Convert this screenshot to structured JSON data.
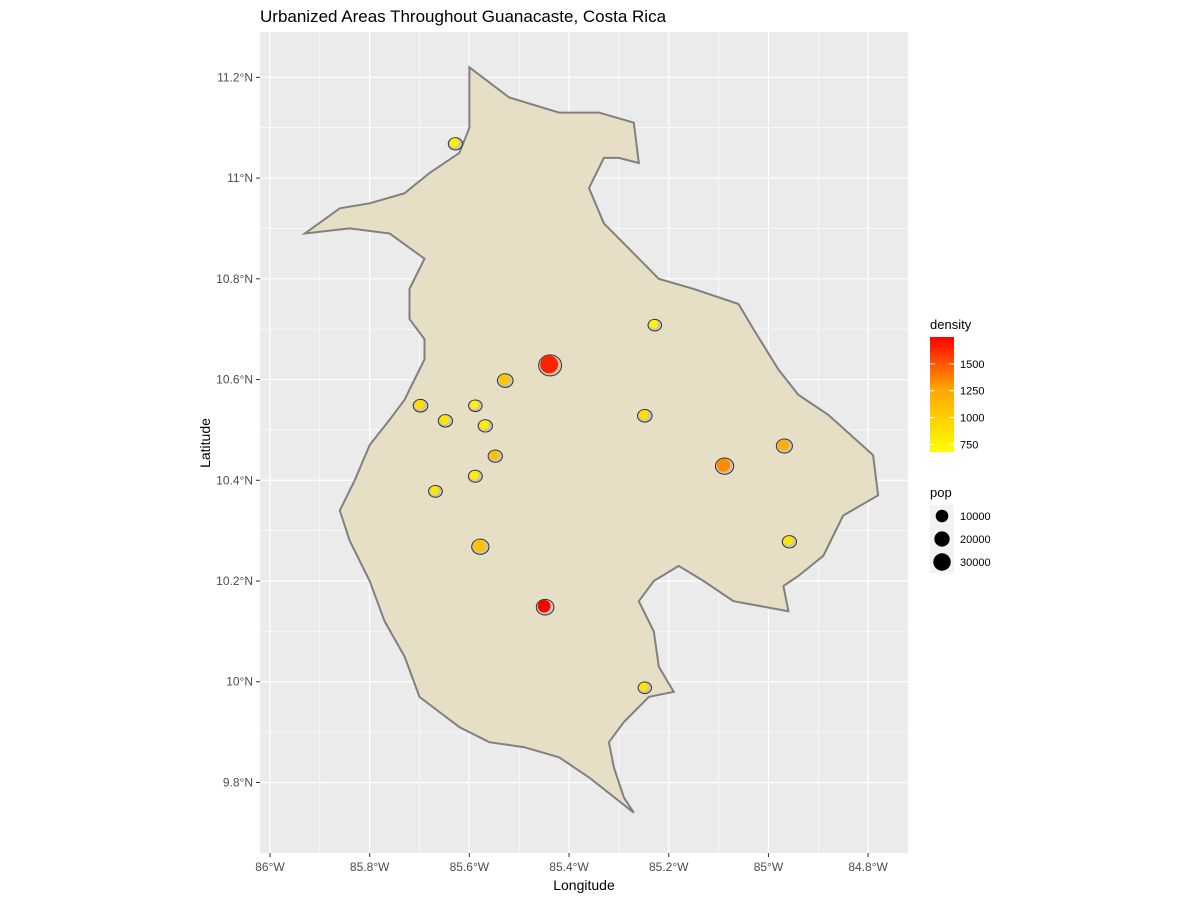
{
  "title": "Urbanized Areas Throughout Guanacaste, Costa Rica",
  "colors": {
    "panel_bg": "#ebebeb",
    "grid": "#ffffff",
    "land_fill": "#e6dfc6",
    "land_stroke": "#808080",
    "density_low": "#ffff00",
    "density_high": "#ff0000"
  },
  "chart_data": {
    "type": "scatter",
    "title": "Urbanized Areas Throughout Guanacaste, Costa Rica",
    "xlabel": "Longitude",
    "ylabel": "Latitude",
    "xlim": [
      -86.02,
      -84.72
    ],
    "ylim": [
      9.66,
      11.29
    ],
    "grid": true,
    "x_ticks": [
      {
        "value": -86.0,
        "label": "86°W"
      },
      {
        "value": -85.8,
        "label": "85.8°W"
      },
      {
        "value": -85.6,
        "label": "85.6°W"
      },
      {
        "value": -85.4,
        "label": "85.4°W"
      },
      {
        "value": -85.2,
        "label": "85.2°W"
      },
      {
        "value": -85.0,
        "label": "85°W"
      },
      {
        "value": -84.8,
        "label": "84.8°W"
      }
    ],
    "y_ticks": [
      {
        "value": 9.8,
        "label": "9.8°N"
      },
      {
        "value": 10.0,
        "label": "10°N"
      },
      {
        "value": 10.2,
        "label": "10.2°N"
      },
      {
        "value": 10.4,
        "label": "10.4°N"
      },
      {
        "value": 10.6,
        "label": "10.6°N"
      },
      {
        "value": 10.8,
        "label": "10.8°N"
      },
      {
        "value": 11.0,
        "label": "11°N"
      },
      {
        "value": 11.2,
        "label": "11.2°N"
      }
    ],
    "province_outline": [
      [
        -85.6,
        11.22
      ],
      [
        -85.52,
        11.16
      ],
      [
        -85.42,
        11.13
      ],
      [
        -85.34,
        11.13
      ],
      [
        -85.27,
        11.11
      ],
      [
        -85.26,
        11.03
      ],
      [
        -85.3,
        11.04
      ],
      [
        -85.33,
        11.04
      ],
      [
        -85.36,
        10.98
      ],
      [
        -85.33,
        10.91
      ],
      [
        -85.28,
        10.86
      ],
      [
        -85.22,
        10.8
      ],
      [
        -85.15,
        10.78
      ],
      [
        -85.06,
        10.75
      ],
      [
        -85.03,
        10.7
      ],
      [
        -84.98,
        10.62
      ],
      [
        -84.94,
        10.57
      ],
      [
        -84.88,
        10.53
      ],
      [
        -84.79,
        10.45
      ],
      [
        -84.78,
        10.37
      ],
      [
        -84.85,
        10.33
      ],
      [
        -84.89,
        10.25
      ],
      [
        -84.94,
        10.21
      ],
      [
        -84.97,
        10.19
      ],
      [
        -84.96,
        10.14
      ],
      [
        -85.07,
        10.16
      ],
      [
        -85.13,
        10.2
      ],
      [
        -85.18,
        10.23
      ],
      [
        -85.23,
        10.2
      ],
      [
        -85.26,
        10.16
      ],
      [
        -85.23,
        10.1
      ],
      [
        -85.22,
        10.03
      ],
      [
        -85.19,
        9.98
      ],
      [
        -85.24,
        9.97
      ],
      [
        -85.29,
        9.92
      ],
      [
        -85.32,
        9.88
      ],
      [
        -85.31,
        9.83
      ],
      [
        -85.29,
        9.77
      ],
      [
        -85.27,
        9.74
      ],
      [
        -85.36,
        9.81
      ],
      [
        -85.42,
        9.85
      ],
      [
        -85.49,
        9.87
      ],
      [
        -85.56,
        9.88
      ],
      [
        -85.62,
        9.91
      ],
      [
        -85.66,
        9.94
      ],
      [
        -85.7,
        9.97
      ],
      [
        -85.73,
        10.05
      ],
      [
        -85.77,
        10.12
      ],
      [
        -85.8,
        10.2
      ],
      [
        -85.84,
        10.28
      ],
      [
        -85.86,
        10.34
      ],
      [
        -85.83,
        10.4
      ],
      [
        -85.8,
        10.47
      ],
      [
        -85.76,
        10.52
      ],
      [
        -85.73,
        10.56
      ],
      [
        -85.71,
        10.6
      ],
      [
        -85.69,
        10.64
      ],
      [
        -85.69,
        10.68
      ],
      [
        -85.72,
        10.72
      ],
      [
        -85.72,
        10.78
      ],
      [
        -85.69,
        10.84
      ],
      [
        -85.76,
        10.89
      ],
      [
        -85.84,
        10.9
      ],
      [
        -85.93,
        10.89
      ],
      [
        -85.86,
        10.94
      ],
      [
        -85.8,
        10.95
      ],
      [
        -85.73,
        10.97
      ],
      [
        -85.68,
        11.01
      ],
      [
        -85.62,
        11.05
      ],
      [
        -85.6,
        11.1
      ],
      [
        -85.6,
        11.22
      ]
    ],
    "legend": {
      "position": "right",
      "density": {
        "title": "density",
        "ticks": [
          750,
          1000,
          1250,
          1500
        ],
        "labels": [
          "750",
          "1000",
          "1250",
          "1500"
        ],
        "min": 680,
        "max": 1750
      },
      "pop": {
        "title": "pop",
        "values": [
          10000,
          20000,
          30000
        ],
        "labels": [
          "10000",
          "20000",
          "30000"
        ]
      }
    },
    "points": [
      {
        "x": -85.63,
        "y": 11.07,
        "density": 780,
        "pop": 2500
      },
      {
        "x": -85.44,
        "y": 10.63,
        "density": 1650,
        "pop": 33000
      },
      {
        "x": -85.53,
        "y": 10.6,
        "density": 1050,
        "pop": 5000
      },
      {
        "x": -85.23,
        "y": 10.71,
        "density": 760,
        "pop": 1500
      },
      {
        "x": -85.7,
        "y": 10.55,
        "density": 900,
        "pop": 3000
      },
      {
        "x": -85.59,
        "y": 10.55,
        "density": 760,
        "pop": 1500
      },
      {
        "x": -85.65,
        "y": 10.52,
        "density": 850,
        "pop": 2500
      },
      {
        "x": -85.57,
        "y": 10.51,
        "density": 800,
        "pop": 2500
      },
      {
        "x": -85.25,
        "y": 10.53,
        "density": 900,
        "pop": 3000
      },
      {
        "x": -85.55,
        "y": 10.45,
        "density": 1100,
        "pop": 2500
      },
      {
        "x": -84.97,
        "y": 10.47,
        "density": 1200,
        "pop": 6000
      },
      {
        "x": -85.09,
        "y": 10.43,
        "density": 1350,
        "pop": 12000
      },
      {
        "x": -85.59,
        "y": 10.41,
        "density": 780,
        "pop": 2000
      },
      {
        "x": -85.67,
        "y": 10.38,
        "density": 850,
        "pop": 1800
      },
      {
        "x": -85.58,
        "y": 10.27,
        "density": 1080,
        "pop": 9000
      },
      {
        "x": -84.96,
        "y": 10.28,
        "density": 850,
        "pop": 2500
      },
      {
        "x": -85.45,
        "y": 10.15,
        "density": 1750,
        "pop": 10000
      },
      {
        "x": -85.25,
        "y": 9.99,
        "density": 850,
        "pop": 1500
      }
    ]
  }
}
